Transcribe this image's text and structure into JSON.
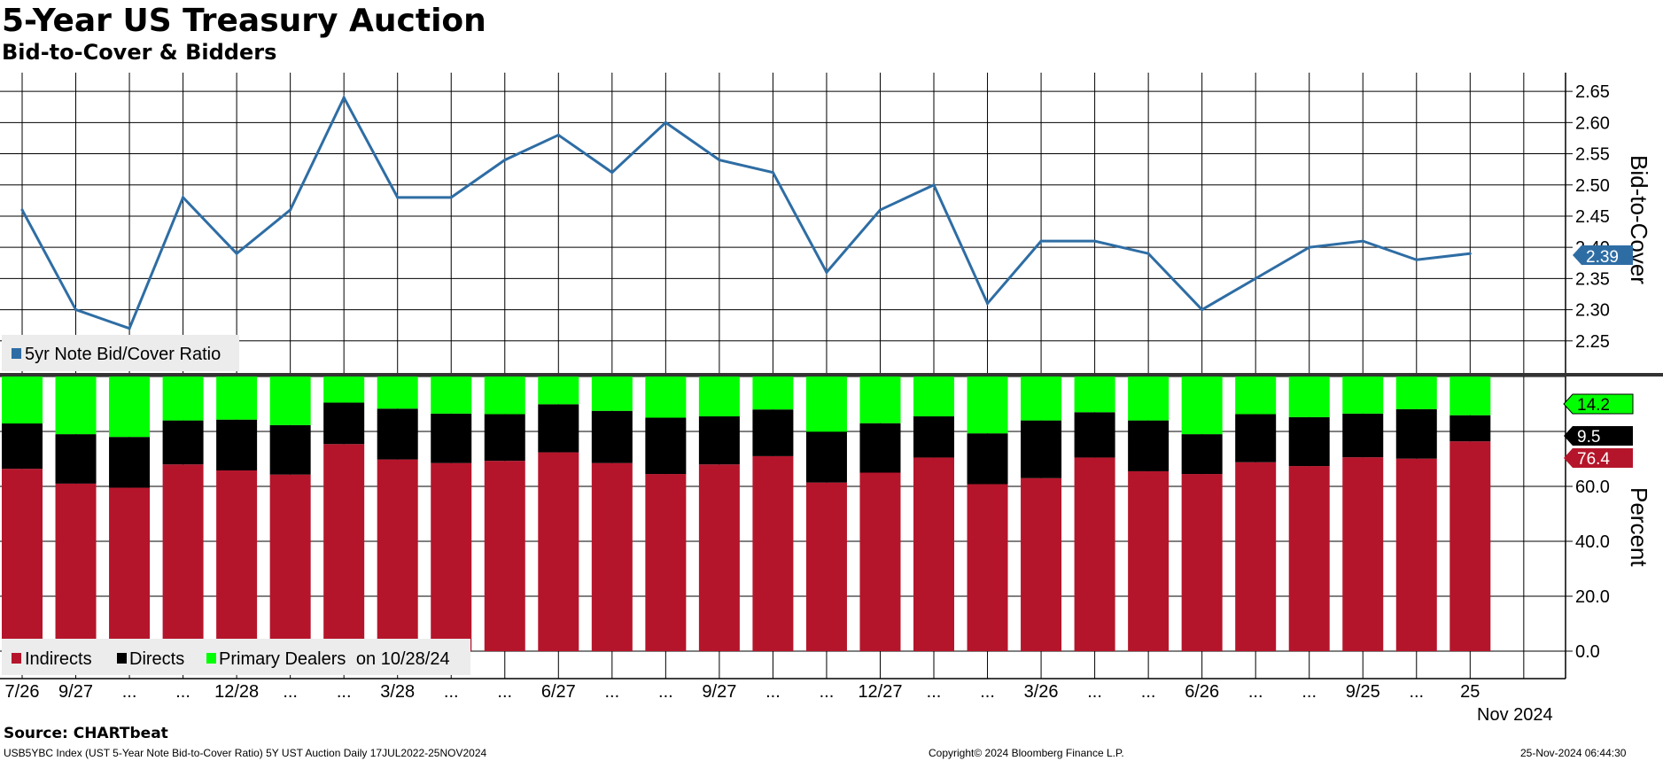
{
  "header": {
    "title": "5-Year US Treasury Auction",
    "subtitle": "Bid-to-Cover & Bidders"
  },
  "footer": {
    "source": "Source: CHARTbeat",
    "left": "USB5YBC Index (UST 5-Year Note Bid-to-Cover Ratio) 5Y UST Auction  Daily 17JUL2022-25NOV2024",
    "center": "Copyright© 2024 Bloomberg Finance L.P.",
    "right": "25-Nov-2024 06:44:30"
  },
  "x_axis": {
    "labels": [
      "7/26",
      "9/27",
      "...",
      "...",
      "12/28",
      "...",
      "...",
      "3/28",
      "...",
      "...",
      "6/27",
      "...",
      "...",
      "9/27",
      "...",
      "...",
      "12/27",
      "...",
      "...",
      "3/26",
      "...",
      "...",
      "6/26",
      "...",
      "...",
      "9/25",
      "...",
      "25"
    ],
    "year_label": "Nov 2024"
  },
  "colors": {
    "line": "#2e6da4",
    "indirects": "#b5152b",
    "directs": "#000000",
    "primary_dealers": "#00ff00",
    "grid": "#000000"
  },
  "chart_data": [
    {
      "type": "line",
      "ylabel": "Bid-to-Cover",
      "ylim": [
        2.2,
        2.68
      ],
      "yticks": [
        "2.25",
        "2.30",
        "2.35",
        "2.40",
        "2.45",
        "2.50",
        "2.55",
        "2.60",
        "2.65"
      ],
      "grid": true,
      "legend_position": "bottom-left",
      "series": [
        {
          "name": "5yr Note Bid/Cover Ratio",
          "values": [
            2.46,
            2.3,
            2.27,
            2.48,
            2.39,
            2.46,
            2.64,
            2.48,
            2.48,
            2.54,
            2.58,
            2.52,
            2.6,
            2.54,
            2.52,
            2.36,
            2.46,
            2.5,
            2.31,
            2.41,
            2.41,
            2.39,
            2.3,
            2.35,
            2.4,
            2.41,
            2.38,
            2.39
          ]
        }
      ],
      "last_value_label": "2.39"
    },
    {
      "type": "bar",
      "stacked": true,
      "ylabel": "Percent",
      "ylim": [
        -10,
        100
      ],
      "yticks": [
        "0.0",
        "20.0",
        "40.0",
        "60.0"
      ],
      "grid": true,
      "legend_position": "bottom-left",
      "legend_suffix": "on 10/28/24",
      "series": [
        {
          "name": "Indirects",
          "values": [
            66.4,
            61.0,
            59.5,
            68.0,
            65.8,
            64.3,
            75.4,
            69.8,
            68.5,
            69.3,
            72.4,
            68.5,
            64.5,
            68.0,
            71.0,
            61.4,
            65.0,
            70.5,
            60.8,
            63.0,
            70.5,
            65.5,
            64.5,
            68.8,
            67.4,
            70.6,
            70.1,
            76.4
          ]
        },
        {
          "name": "Directs",
          "values": [
            16.5,
            18.0,
            18.5,
            16.0,
            18.5,
            18.0,
            15.1,
            18.5,
            18.0,
            17.0,
            17.5,
            19.0,
            20.5,
            17.5,
            17.0,
            18.5,
            18.0,
            15.0,
            18.5,
            21.0,
            16.5,
            18.5,
            14.5,
            17.5,
            17.8,
            15.9,
            18.0,
            9.5
          ]
        },
        {
          "name": "Primary Dealers",
          "values": [
            17.1,
            21.0,
            22.0,
            16.0,
            15.7,
            17.7,
            9.5,
            11.7,
            13.5,
            13.7,
            10.1,
            12.5,
            15.0,
            14.5,
            12.0,
            20.1,
            17.0,
            14.5,
            20.7,
            16.0,
            13.0,
            16.0,
            21.0,
            13.7,
            14.8,
            13.5,
            11.9,
            14.2
          ]
        }
      ],
      "last_value_labels": [
        "14.2",
        "9.5",
        "76.4"
      ]
    }
  ]
}
